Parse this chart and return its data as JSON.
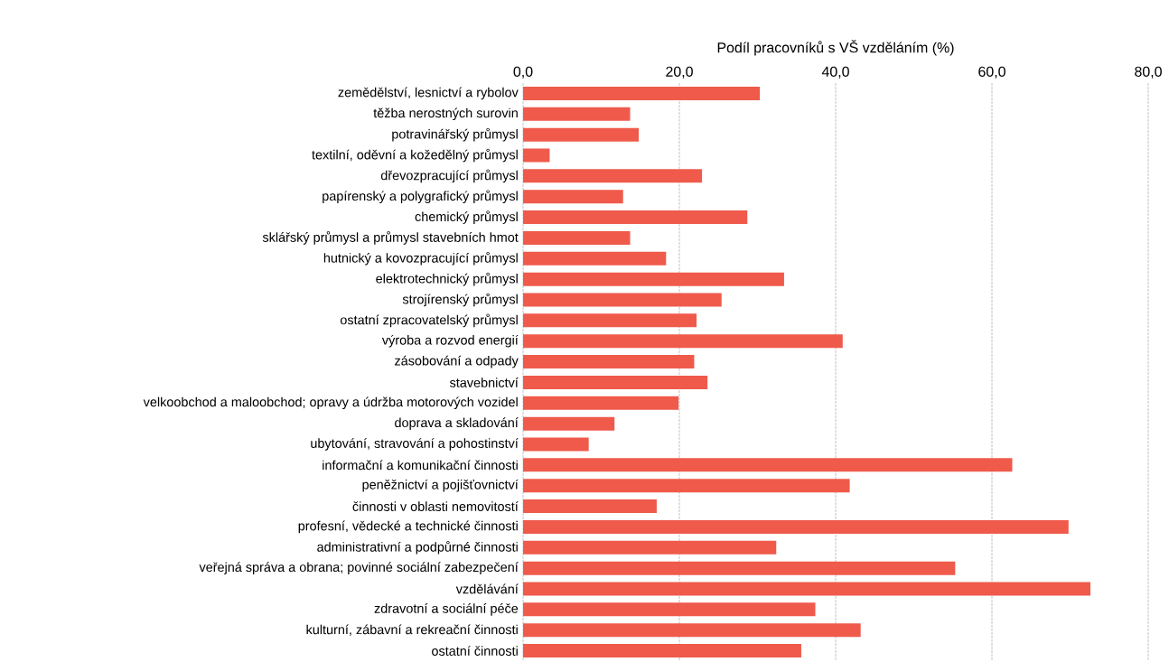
{
  "chart_data": {
    "type": "bar",
    "orientation": "horizontal",
    "xlabel": "Podíl pracovníků s VŠ vzděláním (%)",
    "categories": [
      "zemědělství, lesnictví a rybolov",
      "těžba nerostných surovin",
      "potravinářský průmysl",
      "textilní, oděvní a kožedělný průmysl",
      "dřevozpracující průmysl",
      "papírenský a polygrafický průmysl",
      "chemický průmysl",
      "sklářský průmysl a průmysl stavebních hmot",
      "hutnický a kovozpracující průmysl",
      "elektrotechnický průmysl",
      "strojírenský průmysl",
      "ostatní zpracovatelský průmysl",
      "výroba a rozvod energií",
      "zásobování a odpady",
      "stavebnictví",
      "velkoobchod a maloobchod; opravy a údržba motorových vozidel",
      "doprava a skladování",
      "ubytování, stravování a pohostinství",
      "informační a komunikační činnosti",
      "peněžnictví a pojišťovnictví",
      "činnosti v oblasti nemovitostí",
      "profesní, vědecké a technické činnosti",
      "administrativní a podpůrné činnosti",
      "veřejná správa a obrana; povinné sociální zabezpečení",
      "vzdělávání",
      "zdravotní a sociální péče",
      "kulturní, zábavní a rekreační činnosti",
      "ostatní činnosti"
    ],
    "values": [
      30.3,
      13.7,
      14.8,
      3.4,
      22.9,
      12.8,
      28.7,
      13.7,
      18.3,
      33.4,
      25.4,
      22.2,
      40.9,
      21.9,
      23.6,
      19.9,
      11.7,
      8.4,
      62.6,
      41.8,
      17.1,
      69.8,
      32.4,
      55.3,
      72.6,
      37.4,
      43.2,
      35.6
    ],
    "color": "#ef5a4b",
    "xlim": [
      0,
      80
    ],
    "xticks": [
      {
        "value": 0,
        "label": "0,0"
      },
      {
        "value": 20,
        "label": "20,0"
      },
      {
        "value": 40,
        "label": "40,0"
      },
      {
        "value": 60,
        "label": "60,0"
      },
      {
        "value": 80,
        "label": "80,0"
      }
    ],
    "grid": "x"
  }
}
